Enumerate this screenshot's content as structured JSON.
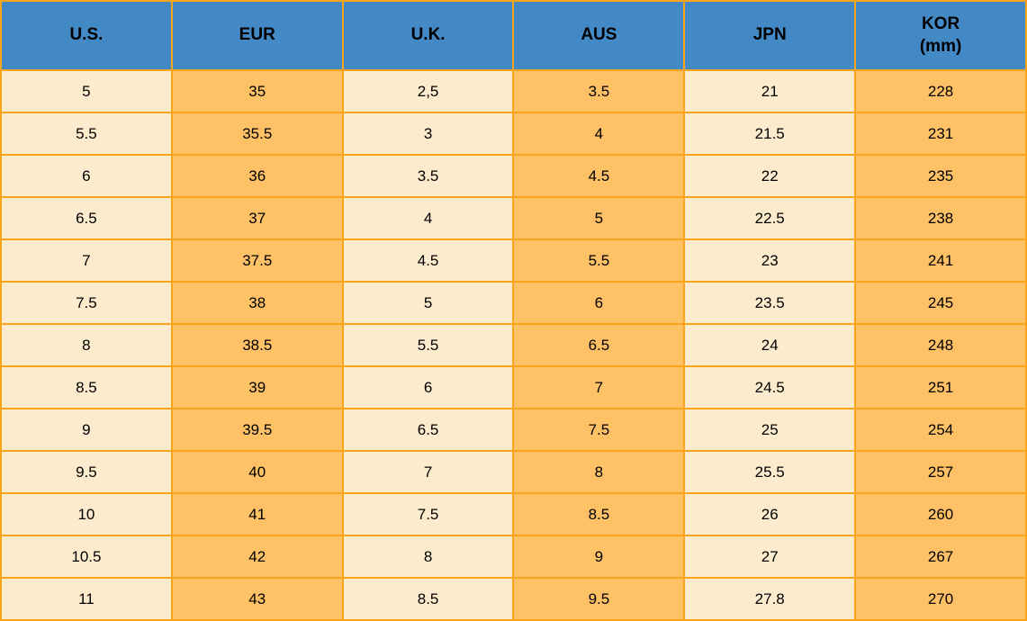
{
  "colors": {
    "header_bg": "#4389C6",
    "cell_cream": "#FDEBCE",
    "cell_orange": "#FFC166",
    "grid_border": "#F9A41B",
    "text": "#000000"
  },
  "headers": [
    {
      "label": "U.S."
    },
    {
      "label": "EUR"
    },
    {
      "label": "U.K."
    },
    {
      "label": "AUS"
    },
    {
      "label": "JPN"
    },
    {
      "label": "KOR",
      "sub": "(mm)"
    }
  ],
  "chart_data": {
    "type": "table",
    "title": "",
    "columns": [
      "U.S.",
      "EUR",
      "U.K.",
      "AUS",
      "JPN",
      "KOR (mm)"
    ],
    "rows": [
      [
        "5",
        "35",
        "2,5",
        "3.5",
        "21",
        "228"
      ],
      [
        "5.5",
        "35.5",
        "3",
        "4",
        "21.5",
        "231"
      ],
      [
        "6",
        "36",
        "3.5",
        "4.5",
        "22",
        "235"
      ],
      [
        "6.5",
        "37",
        "4",
        "5",
        "22.5",
        "238"
      ],
      [
        "7",
        "37.5",
        "4.5",
        "5.5",
        "23",
        "241"
      ],
      [
        "7.5",
        "38",
        "5",
        "6",
        "23.5",
        "245"
      ],
      [
        "8",
        "38.5",
        "5.5",
        "6.5",
        "24",
        "248"
      ],
      [
        "8.5",
        "39",
        "6",
        "7",
        "24.5",
        "251"
      ],
      [
        "9",
        "39.5",
        "6.5",
        "7.5",
        "25",
        "254"
      ],
      [
        "9.5",
        "40",
        "7",
        "8",
        "25.5",
        "257"
      ],
      [
        "10",
        "41",
        "7.5",
        "8.5",
        "26",
        "260"
      ],
      [
        "10.5",
        "42",
        "8",
        "9",
        "27",
        "267"
      ],
      [
        "11",
        "43",
        "8.5",
        "9.5",
        "27.8",
        "270"
      ]
    ]
  }
}
